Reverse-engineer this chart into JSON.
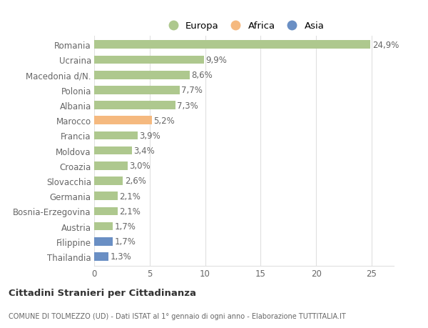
{
  "categories": [
    "Romania",
    "Ucraina",
    "Macedonia d/N.",
    "Polonia",
    "Albania",
    "Marocco",
    "Francia",
    "Moldova",
    "Croazia",
    "Slovacchia",
    "Germania",
    "Bosnia-Erzegovina",
    "Austria",
    "Filippine",
    "Thailandia"
  ],
  "values": [
    24.9,
    9.9,
    8.6,
    7.7,
    7.3,
    5.2,
    3.9,
    3.4,
    3.0,
    2.6,
    2.1,
    2.1,
    1.7,
    1.7,
    1.3
  ],
  "labels": [
    "24,9%",
    "9,9%",
    "8,6%",
    "7,7%",
    "7,3%",
    "5,2%",
    "3,9%",
    "3,4%",
    "3,0%",
    "2,6%",
    "2,1%",
    "2,1%",
    "1,7%",
    "1,7%",
    "1,3%"
  ],
  "continents": [
    "Europa",
    "Europa",
    "Europa",
    "Europa",
    "Europa",
    "Africa",
    "Europa",
    "Europa",
    "Europa",
    "Europa",
    "Europa",
    "Europa",
    "Europa",
    "Asia",
    "Asia"
  ],
  "colors": {
    "Europa": "#aec88e",
    "Africa": "#f5b97f",
    "Asia": "#6a8fc4"
  },
  "xlim": [
    0,
    27
  ],
  "xticks": [
    0,
    5,
    10,
    15,
    20,
    25
  ],
  "background_color": "#ffffff",
  "title1": "Cittadini Stranieri per Cittadinanza",
  "title2": "COMUNE DI TOLMEZZO (UD) - Dati ISTAT al 1° gennaio di ogni anno - Elaborazione TUTTITALIA.IT",
  "bar_height": 0.55,
  "grid_color": "#e0e0e0",
  "text_color": "#666666",
  "label_fontsize": 8.5,
  "tick_fontsize": 8.5,
  "legend_fontsize": 9.5,
  "legend_keys": [
    "Europa",
    "Africa",
    "Asia"
  ],
  "legend_colors": [
    "#aec88e",
    "#f5b97f",
    "#6a8fc4"
  ]
}
